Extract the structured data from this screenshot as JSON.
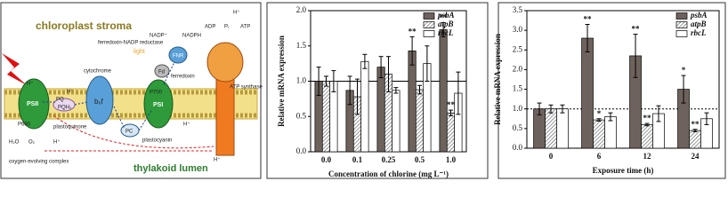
{
  "chart_data": [
    {
      "type": "bar",
      "ylabel": "Relative mRNA expression",
      "xlabel": "Concentration of chlorine (mg L⁻¹)",
      "categories": [
        "0.0",
        "0.1",
        "0.25",
        "0.5",
        "1.0"
      ],
      "series": [
        {
          "name": "psbA",
          "color": "#6e635c",
          "hatch": false,
          "values": [
            1.0,
            0.87,
            1.2,
            1.43,
            1.73
          ],
          "errors": [
            0.2,
            0.2,
            0.15,
            0.2,
            0.1
          ],
          "marks": [
            null,
            null,
            null,
            "**",
            "**"
          ]
        },
        {
          "name": "atpB",
          "color": "#555555",
          "hatch": true,
          "values": [
            1.0,
            0.78,
            1.1,
            0.88,
            0.55
          ],
          "errors": [
            0.07,
            0.25,
            0.25,
            0.06,
            0.04
          ],
          "marks": [
            null,
            null,
            null,
            null,
            "**"
          ]
        },
        {
          "name": "rbcL",
          "color": "#ffffff",
          "hatch": false,
          "values": [
            1.0,
            1.28,
            0.87,
            1.25,
            0.83
          ],
          "errors": [
            0.15,
            0.1,
            0.04,
            0.25,
            0.3
          ],
          "marks": [
            null,
            null,
            null,
            null,
            null
          ]
        }
      ],
      "ylim": [
        0,
        2
      ],
      "yticks": [
        {
          "value": 0,
          "label": "0.0"
        },
        {
          "value": 0.5,
          "label": "0.5"
        },
        {
          "value": 1,
          "label": "1.0"
        },
        {
          "value": 1.5,
          "label": "1.5"
        },
        {
          "value": 2,
          "label": "2.0"
        }
      ],
      "ref_line": {
        "value": 1,
        "dashed": false
      }
    },
    {
      "type": "bar",
      "ylabel": "Relative mRNA expression",
      "xlabel": "Exposure time (h)",
      "categories": [
        "0",
        "6",
        "12",
        "24"
      ],
      "series": [
        {
          "name": "psbA",
          "color": "#6e635c",
          "hatch": false,
          "values": [
            1.0,
            2.8,
            2.35,
            1.5
          ],
          "errors": [
            0.15,
            0.35,
            0.55,
            0.35
          ],
          "marks": [
            null,
            "**",
            "**",
            "*"
          ]
        },
        {
          "name": "atpB",
          "color": "#555555",
          "hatch": true,
          "values": [
            1.0,
            0.72,
            0.6,
            0.45
          ],
          "errors": [
            0.1,
            0.03,
            0.03,
            0.03
          ],
          "marks": [
            null,
            "*",
            "**",
            "**"
          ]
        },
        {
          "name": "rbcL",
          "color": "#ffffff",
          "hatch": false,
          "values": [
            1.0,
            0.8,
            0.88,
            0.75
          ],
          "errors": [
            0.1,
            0.1,
            0.2,
            0.15
          ],
          "marks": [
            null,
            null,
            null,
            null
          ]
        }
      ],
      "ylim": [
        0,
        3.5
      ],
      "yticks": [
        {
          "value": 0,
          "label": "0.0"
        },
        {
          "value": 0.5,
          "label": "0.5"
        },
        {
          "value": 1,
          "label": "1.0"
        },
        {
          "value": 1.5,
          "label": "1.5"
        },
        {
          "value": 2,
          "label": "2.0"
        },
        {
          "value": 2.5,
          "label": "2.5"
        },
        {
          "value": 3,
          "label": "3.0"
        },
        {
          "value": 3.5,
          "label": "3.5"
        }
      ],
      "ref_line": {
        "value": 1,
        "dashed": true
      }
    }
  ],
  "diagram": {
    "labels": [
      "chloroplast stroma",
      "thylakoid lumen",
      "PSII",
      "PSI",
      "cytochrome",
      "b₆f",
      "PQ",
      "PQH₂",
      "plastoquinone",
      "PC",
      "plastocyanin",
      "Fd",
      "ferredoxin",
      "FNR",
      "ferredoxin-NADP reductase",
      "NADP⁺",
      "NADPH",
      "ADP",
      "Pᵢ",
      "ATP",
      "ATP synthase",
      "light",
      "H₂O",
      "O₂",
      "oxygen-evolving complex",
      "P680",
      "P700",
      "H⁺",
      "H⁺",
      "H⁺",
      "H⁺",
      "H⁺",
      "H⁺"
    ]
  }
}
